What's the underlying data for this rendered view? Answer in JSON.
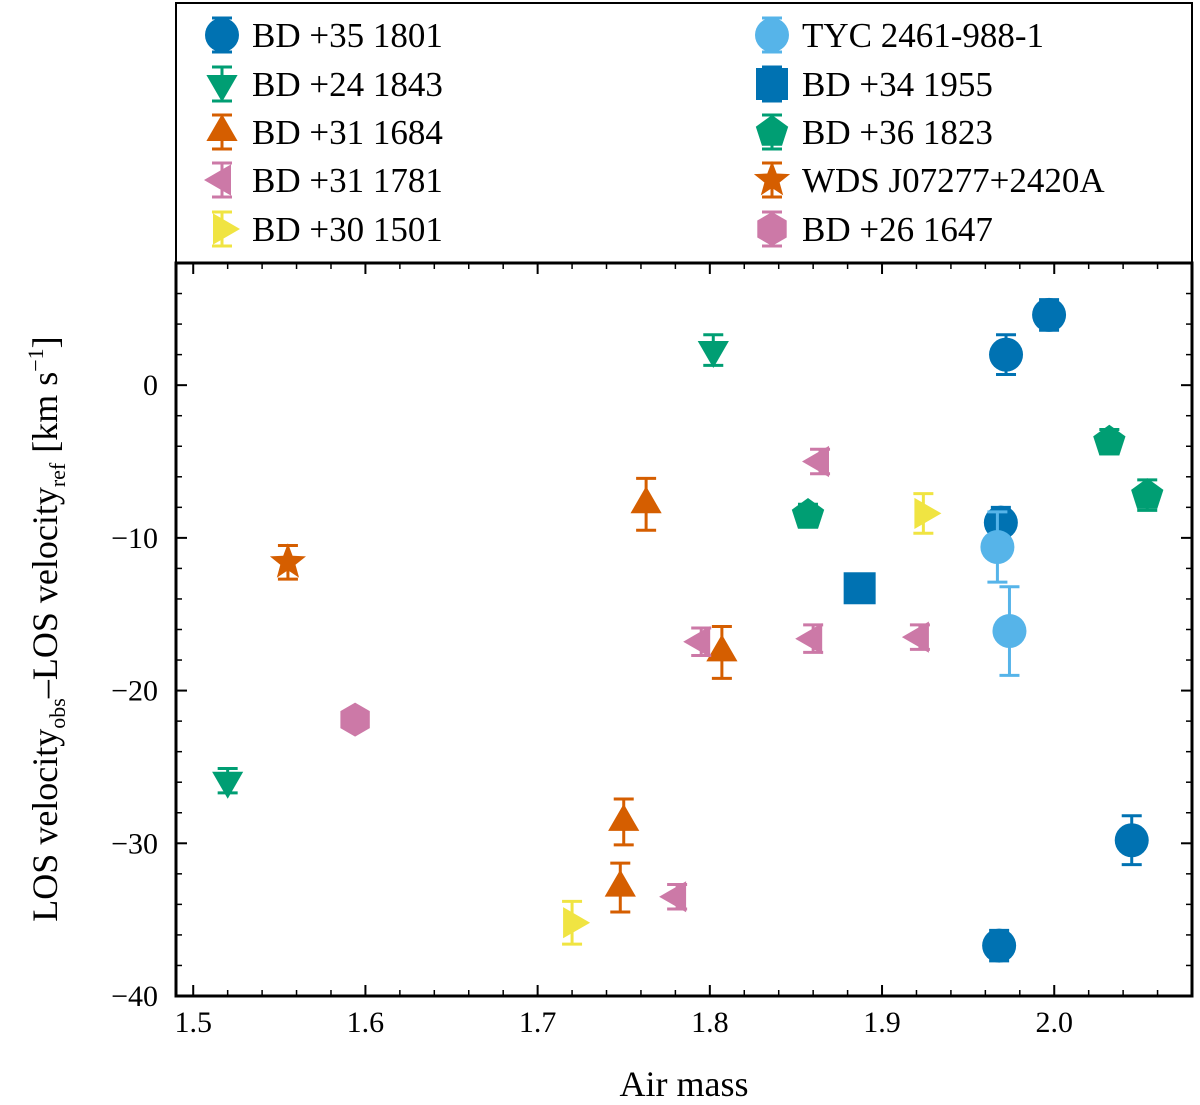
{
  "chart_data": {
    "type": "scatter",
    "xlabel": "Air mass",
    "ylabel": {
      "part1": "LOS velocity",
      "sub1": "obs",
      "dash": "–",
      "part2": "LOS velocity",
      "sub2": "ref",
      "unit": "km s",
      "unit_exp": "−1"
    },
    "xlim": [
      1.49,
      2.08
    ],
    "ylim": [
      -40,
      8
    ],
    "xticks": [
      1.5,
      1.6,
      1.7,
      1.8,
      1.9,
      2.0
    ],
    "xtick_labels": [
      "1.5",
      "1.6",
      "1.7",
      "1.8",
      "1.9",
      "2.0"
    ],
    "yticks": [
      -40,
      -30,
      -20,
      -10,
      0
    ],
    "ytick_labels": [
      "−40",
      "−30",
      "−20",
      "−10",
      "0"
    ],
    "grid": false,
    "legend_position": "top, above plot",
    "series": [
      {
        "name": "BD +35 1801",
        "color": "#0072b2",
        "marker": "circle",
        "points": [
          {
            "x": 1.972,
            "y": 2.0,
            "err": 1.3
          },
          {
            "x": 1.997,
            "y": 4.6,
            "err": 1.0
          },
          {
            "x": 1.969,
            "y": -9.0,
            "err": 1.0
          },
          {
            "x": 2.045,
            "y": -29.8,
            "err": 1.6
          },
          {
            "x": 1.968,
            "y": -36.7,
            "err": 1.0
          }
        ]
      },
      {
        "name": "BD +24 1843",
        "color": "#009e73",
        "marker": "triangle-down",
        "points": [
          {
            "x": 1.802,
            "y": 2.3,
            "err": 1.0
          },
          {
            "x": 1.52,
            "y": -25.9,
            "err": 0.8
          }
        ]
      },
      {
        "name": "BD +31 1684",
        "color": "#d55e00",
        "marker": "triangle-up",
        "points": [
          {
            "x": 1.763,
            "y": -7.8,
            "err": 1.7
          },
          {
            "x": 1.807,
            "y": -17.5,
            "err": 1.7
          },
          {
            "x": 1.75,
            "y": -28.6,
            "err": 1.5
          },
          {
            "x": 1.748,
            "y": -32.9,
            "err": 1.6
          }
        ]
      },
      {
        "name": "BD +31 1781",
        "color": "#cc79a7",
        "marker": "triangle-left",
        "points": [
          {
            "x": 1.864,
            "y": -5.0,
            "err": 0.8
          },
          {
            "x": 1.795,
            "y": -16.8,
            "err": 0.9
          },
          {
            "x": 1.86,
            "y": -16.6,
            "err": 0.9
          },
          {
            "x": 1.922,
            "y": -16.5,
            "err": 0.8
          },
          {
            "x": 1.781,
            "y": -33.5,
            "err": 0.8
          }
        ]
      },
      {
        "name": "BD +30 1501",
        "color": "#f0e442",
        "marker": "triangle-right",
        "points": [
          {
            "x": 1.924,
            "y": -8.4,
            "err": 1.3
          },
          {
            "x": 1.72,
            "y": -35.2,
            "err": 1.4
          }
        ]
      },
      {
        "name": "TYC 2461-988-1",
        "color": "#56b4e9",
        "marker": "circle",
        "points": [
          {
            "x": 1.967,
            "y": -10.6,
            "err": 2.3
          },
          {
            "x": 1.974,
            "y": -16.1,
            "err": 2.9
          }
        ]
      },
      {
        "name": "BD +34 1955",
        "color": "#0072b2",
        "marker": "square",
        "points": [
          {
            "x": 1.887,
            "y": -13.3,
            "err": 0.6
          }
        ]
      },
      {
        "name": "BD +36 1823",
        "color": "#009e73",
        "marker": "pentagon",
        "points": [
          {
            "x": 1.857,
            "y": -8.5,
            "err": 0.7
          },
          {
            "x": 2.032,
            "y": -3.7,
            "err": 0.8
          },
          {
            "x": 2.054,
            "y": -7.2,
            "err": 1.0
          }
        ]
      },
      {
        "name": "WDS J07277+2420A",
        "color": "#d55e00",
        "marker": "star",
        "points": [
          {
            "x": 1.555,
            "y": -11.6,
            "err": 1.1
          }
        ]
      },
      {
        "name": "BD +26 1647",
        "color": "#cc79a7",
        "marker": "hexagon",
        "points": [
          {
            "x": 1.594,
            "y": -21.9,
            "err": 0.6
          }
        ]
      }
    ]
  }
}
